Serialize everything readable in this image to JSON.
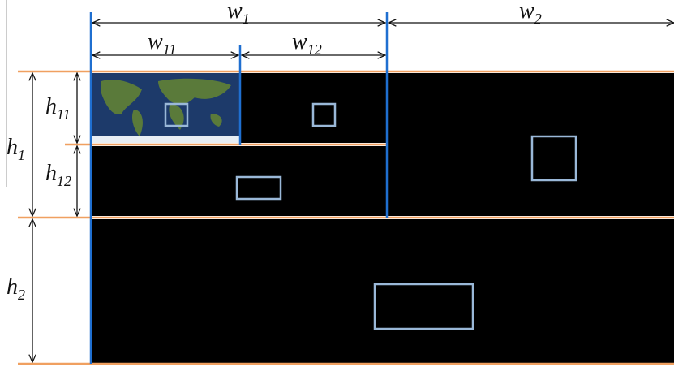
{
  "labels": {
    "w1": {
      "base": "w",
      "sub": "1"
    },
    "w2": {
      "base": "w",
      "sub": "2"
    },
    "w11": {
      "base": "w",
      "sub": "11"
    },
    "w12": {
      "base": "w",
      "sub": "12"
    },
    "h1": {
      "base": "h",
      "sub": "1"
    },
    "h11": {
      "base": "h",
      "sub": "11"
    },
    "h12": {
      "base": "h",
      "sub": "12"
    },
    "h2": {
      "base": "h",
      "sub": "2"
    }
  }
}
